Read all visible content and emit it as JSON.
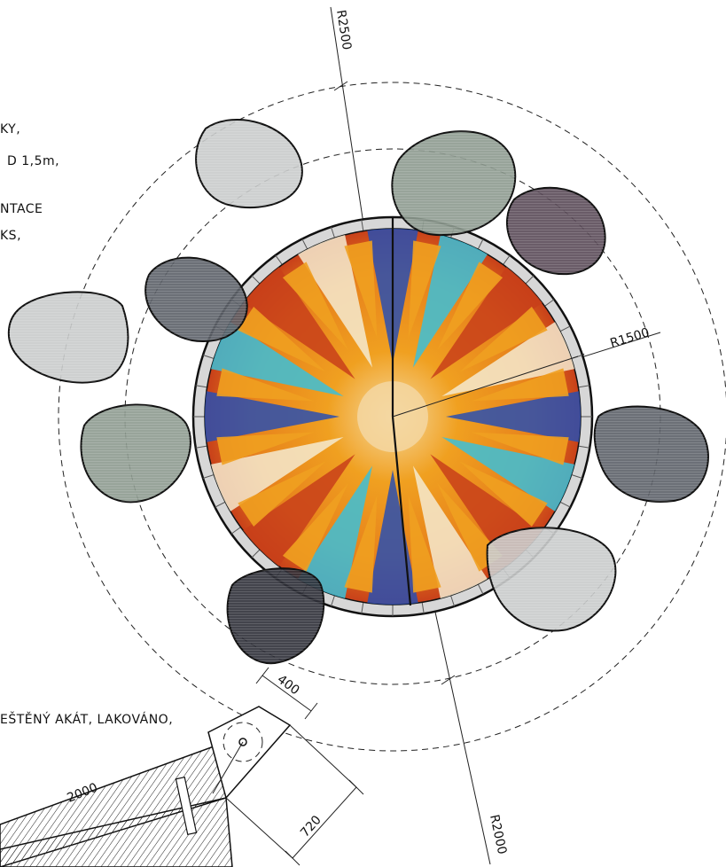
{
  "annotations": {
    "note_line_1": "KY,",
    "note_line_2": "D 1,5m,",
    "note_line_3": "NTACE",
    "note_line_4": "KS,",
    "bottom_note": "EŠTĚNÝ AKÁT, LAKOVÁNO,"
  },
  "dimensions": {
    "radius_outer": "R2500",
    "radius_middle": "R2000",
    "radius_inner": "R1500",
    "dim_width": "400",
    "dim_depth": "720",
    "dim_length": "2000"
  },
  "colors": {
    "mosaic_orange": "#f0a020",
    "mosaic_red": "#c8401a",
    "mosaic_blue": "#2a4fb0",
    "mosaic_cyan": "#3cc0d8",
    "mosaic_cream": "#f4ead0",
    "stone_light": "#c9cbcb",
    "stone_sage": "#8d9a8f",
    "stone_slate": "#5c6168",
    "stone_plum": "#5a4a58",
    "stone_dark": "#2f3038"
  }
}
